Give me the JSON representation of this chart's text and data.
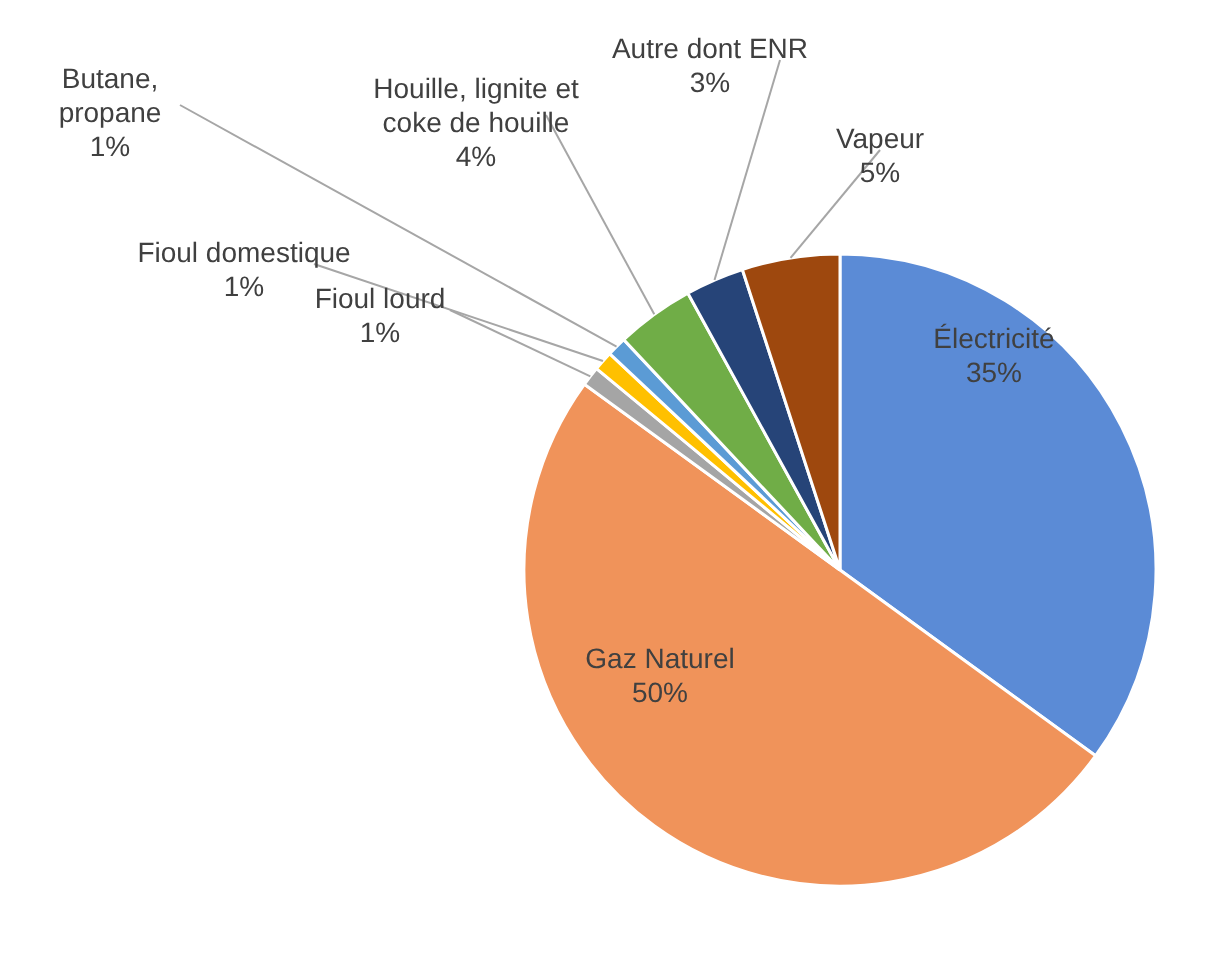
{
  "chart_data": {
    "type": "pie",
    "categories": [
      "Électricité",
      "Gaz Naturel",
      "Fioul lourd",
      "Fioul domestique",
      "Butane,\npropane",
      "Houille, lignite et\ncoke de houille",
      "Autre dont ENR",
      "Vapeur"
    ],
    "values": [
      35,
      50,
      1,
      1,
      1,
      4,
      3,
      5
    ],
    "value_labels": [
      "35%",
      "50%",
      "1%",
      "1%",
      "1%",
      "4%",
      "3%",
      "5%"
    ],
    "colors": [
      "#5b8bd6",
      "#f0935a",
      "#a5a5a5",
      "#ffc000",
      "#5b9bd5",
      "#70ad47",
      "#264478",
      "#9e480e"
    ]
  }
}
